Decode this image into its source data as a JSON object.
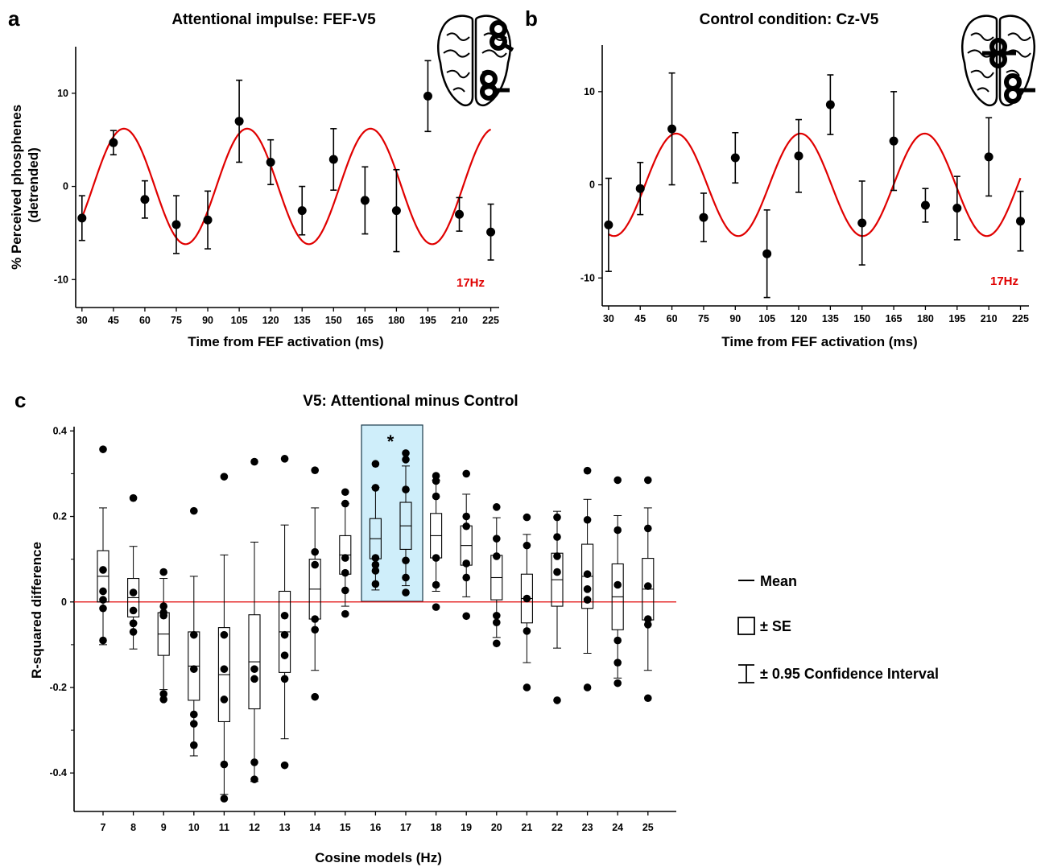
{
  "colors": {
    "fit": "#e00000",
    "highlight_fill": "#cfeefa",
    "highlight_stroke": "#1a3a4a",
    "ink": "#000000"
  },
  "panel_a": {
    "letter": "a",
    "title": "Attentional impulse: FEF-V5",
    "fit_label": "17Hz",
    "icon": "brain-icon"
  },
  "panel_b": {
    "letter": "b",
    "title": "Control condition: Cz-V5",
    "fit_label": "17Hz",
    "icon": "brain-icon"
  },
  "panel_c": {
    "letter": "c",
    "title": "V5: Attentional minus Control",
    "significance": "*"
  },
  "legend": {
    "mean": "Mean",
    "se": "± SE",
    "ci": "± 0.95 Confidence Interval"
  },
  "chart_data": [
    {
      "type": "scatter",
      "panel": "a",
      "title": "Attentional impulse: FEF-V5",
      "xlabel": "Time from FEF activation (ms)",
      "ylabel": "% Perceived phosphenes (detrended)",
      "x": [
        30,
        45,
        60,
        75,
        90,
        105,
        120,
        135,
        150,
        165,
        180,
        195,
        210,
        225
      ],
      "y": [
        -3.4,
        4.7,
        -1.4,
        -4.1,
        -3.6,
        7.0,
        2.6,
        -2.6,
        2.9,
        -1.5,
        -2.6,
        9.7,
        -3.0,
        -4.9
      ],
      "err": [
        2.4,
        1.3,
        2.0,
        3.1,
        3.1,
        4.4,
        2.4,
        2.6,
        3.3,
        3.6,
        4.4,
        3.8,
        1.8,
        3.0
      ],
      "xticks": [
        30,
        45,
        60,
        75,
        90,
        105,
        120,
        135,
        150,
        165,
        180,
        195,
        210,
        225
      ],
      "yticks": [
        -10,
        0,
        10
      ],
      "xlim": [
        27,
        229
      ],
      "ylim": [
        -13,
        15
      ],
      "fit": {
        "label": "17Hz",
        "freq_hz": 17,
        "amplitude": 6.2,
        "peak_ms": 50,
        "x_range": [
          30,
          225
        ]
      }
    },
    {
      "type": "scatter",
      "panel": "b",
      "title": "Control condition: Cz-V5",
      "xlabel": "Time from FEF activation (ms)",
      "ylabel": "",
      "x": [
        30,
        45,
        60,
        75,
        90,
        105,
        120,
        135,
        150,
        165,
        180,
        195,
        210,
        225
      ],
      "y": [
        -4.3,
        -0.4,
        6.0,
        -3.5,
        2.9,
        -7.4,
        3.1,
        8.6,
        -4.1,
        4.7,
        -2.2,
        -2.5,
        3.0,
        -3.9
      ],
      "err": [
        5.0,
        2.8,
        6.0,
        2.6,
        2.7,
        4.7,
        3.9,
        3.2,
        4.5,
        5.3,
        1.8,
        3.4,
        4.2,
        3.2
      ],
      "xticks": [
        30,
        45,
        60,
        75,
        90,
        105,
        120,
        135,
        150,
        165,
        180,
        195,
        210,
        225
      ],
      "yticks": [
        -10,
        0,
        10
      ],
      "xlim": [
        27,
        229
      ],
      "ylim": [
        -13,
        15
      ],
      "fit": {
        "label": "17Hz",
        "freq_hz": 17,
        "amplitude": 5.5,
        "peak_ms": 62,
        "x_range": [
          30,
          225
        ]
      }
    },
    {
      "type": "box",
      "panel": "c",
      "title": "V5: Attentional minus Control",
      "xlabel": "Cosine models (Hz)",
      "ylabel": "R-squared difference",
      "categories": [
        "7",
        "8",
        "9",
        "10",
        "11",
        "12",
        "13",
        "14",
        "15",
        "16",
        "17",
        "18",
        "19",
        "20",
        "21",
        "22",
        "23",
        "24",
        "25"
      ],
      "mean": [
        0.06,
        0.01,
        -0.075,
        -0.15,
        -0.17,
        -0.14,
        -0.07,
        0.03,
        0.11,
        0.148,
        0.178,
        0.155,
        0.132,
        0.057,
        0.008,
        0.052,
        0.06,
        0.012,
        0.03
      ],
      "se": [
        0.06,
        0.045,
        0.05,
        0.08,
        0.11,
        0.11,
        0.095,
        0.07,
        0.045,
        0.047,
        0.055,
        0.052,
        0.046,
        0.052,
        0.057,
        0.062,
        0.075,
        0.077,
        0.072
      ],
      "ci": [
        0.16,
        0.12,
        0.13,
        0.21,
        0.28,
        0.28,
        0.25,
        0.19,
        0.12,
        0.12,
        0.14,
        0.13,
        0.12,
        0.14,
        0.15,
        0.16,
        0.18,
        0.19,
        0.19
      ],
      "points": [
        [
          0.357,
          0.075,
          0.025,
          0.005,
          -0.015,
          -0.09
        ],
        [
          0.243,
          0.022,
          -0.02,
          -0.05,
          -0.05,
          -0.07
        ],
        [
          0.07,
          -0.01,
          -0.025,
          -0.032,
          -0.215,
          -0.228
        ],
        [
          0.213,
          -0.077,
          -0.157,
          -0.263,
          -0.285,
          -0.335
        ],
        [
          0.293,
          -0.077,
          -0.157,
          -0.228,
          -0.38,
          -0.46
        ],
        [
          0.328,
          -0.157,
          -0.18,
          -0.375,
          -0.415
        ],
        [
          0.335,
          -0.032,
          -0.077,
          -0.125,
          -0.18,
          -0.382
        ],
        [
          0.308,
          0.117,
          0.087,
          -0.04,
          -0.065,
          -0.222
        ],
        [
          0.257,
          0.23,
          0.103,
          0.068,
          0.027,
          -0.028
        ],
        [
          0.323,
          0.267,
          0.103,
          0.087,
          0.073,
          0.042
        ],
        [
          0.348,
          0.333,
          0.263,
          0.097,
          0.057,
          0.022
        ],
        [
          0.295,
          0.283,
          0.247,
          0.103,
          0.04,
          -0.012
        ],
        [
          0.3,
          0.2,
          0.177,
          0.09,
          0.057,
          -0.033
        ],
        [
          0.222,
          0.148,
          0.107,
          -0.032,
          -0.048,
          -0.097
        ],
        [
          0.198,
          0.132,
          0.008,
          -0.068,
          -0.2
        ],
        [
          0.198,
          0.152,
          0.107,
          0.07,
          -0.23
        ],
        [
          0.307,
          0.192,
          0.065,
          0.03,
          0.005,
          -0.2
        ],
        [
          0.285,
          0.168,
          0.04,
          -0.09,
          -0.142,
          -0.19
        ],
        [
          0.285,
          0.172,
          0.037,
          -0.04,
          -0.053,
          -0.225
        ]
      ],
      "highlight": [
        "16",
        "17"
      ],
      "significance": "*",
      "yticks": [
        -0.4,
        -0.2,
        0,
        0.2,
        0.4
      ],
      "ylim": [
        -0.49,
        0.41
      ],
      "reference_line": 0
    }
  ]
}
